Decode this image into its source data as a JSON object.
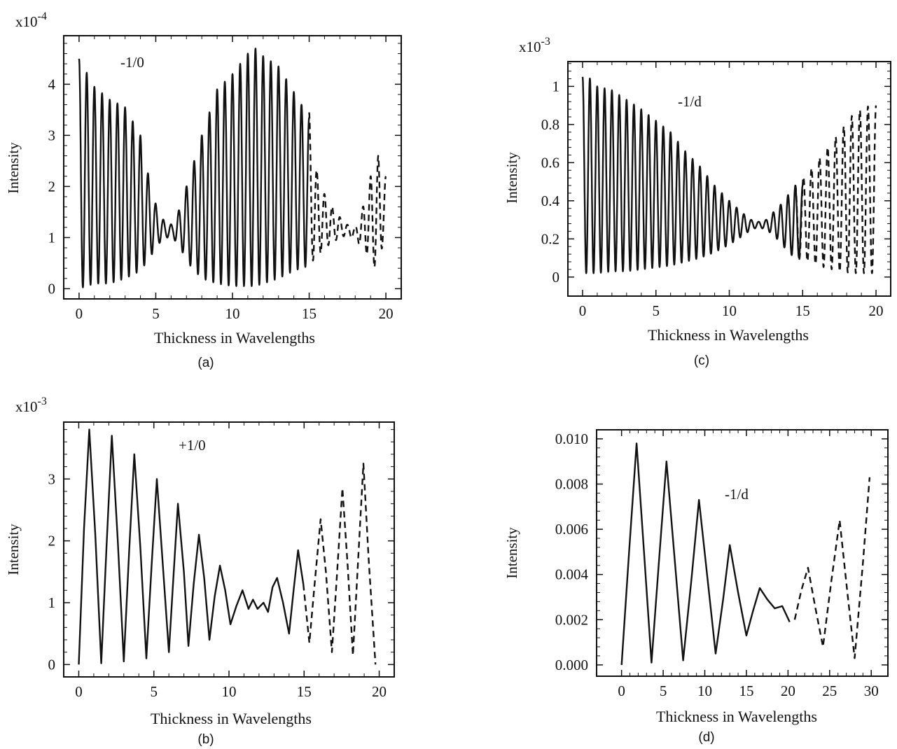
{
  "chart_data": [
    {
      "type": "line",
      "caption": "(a)",
      "annotation": "-1/0",
      "xlabel": "Thickness in  Wavelengths",
      "ylabel": "Intensity",
      "scale_label": "x10",
      "scale_exponent": "-4",
      "xlim": [
        -1,
        21
      ],
      "ylim": [
        -0.2,
        4.95
      ],
      "xticks": [
        0,
        5,
        10,
        15,
        20
      ],
      "yticks": [
        0,
        1,
        2,
        3,
        4
      ],
      "grid": false,
      "series": [
        {
          "style": "solid",
          "x_range": [
            0,
            15
          ],
          "period": 0.5,
          "upper_envelope": [
            [
              0,
              4.5
            ],
            [
              1,
              3.95
            ],
            [
              2,
              3.7
            ],
            [
              3,
              3.55
            ],
            [
              4,
              3.0
            ],
            [
              4.6,
              2.1
            ],
            [
              5.1,
              1.55
            ],
            [
              5.6,
              1.3
            ],
            [
              6.1,
              1.25
            ],
            [
              6.6,
              1.6
            ],
            [
              7.1,
              2.1
            ],
            [
              8,
              3.0
            ],
            [
              9,
              3.9
            ],
            [
              10,
              4.2
            ],
            [
              11,
              4.6
            ],
            [
              11.5,
              4.7
            ],
            [
              12,
              4.55
            ],
            [
              13,
              4.35
            ],
            [
              14,
              3.85
            ],
            [
              15,
              3.35
            ]
          ],
          "lower_envelope": [
            [
              0,
              0.0
            ],
            [
              1,
              0.1
            ],
            [
              2,
              0.1
            ],
            [
              3,
              0.2
            ],
            [
              4,
              0.35
            ],
            [
              4.6,
              0.6
            ],
            [
              5.1,
              0.85
            ],
            [
              5.6,
              1.0
            ],
            [
              6.1,
              1.0
            ],
            [
              6.6,
              0.8
            ],
            [
              7.1,
              0.5
            ],
            [
              8,
              0.2
            ],
            [
              9,
              0.1
            ],
            [
              10,
              0.05
            ],
            [
              11,
              0.05
            ],
            [
              11.5,
              0.05
            ],
            [
              12,
              0.1
            ],
            [
              13,
              0.2
            ],
            [
              14,
              0.35
            ],
            [
              15,
              0.45
            ]
          ]
        },
        {
          "style": "dashed",
          "x_range": [
            15,
            20
          ],
          "period": 0.5,
          "upper_envelope": [
            [
              15,
              3.45
            ],
            [
              15.5,
              2.3
            ],
            [
              16,
              1.85
            ],
            [
              16.5,
              1.6
            ],
            [
              17,
              1.4
            ],
            [
              17.5,
              1.25
            ],
            [
              18,
              1.2
            ],
            [
              18.5,
              1.6
            ],
            [
              19,
              2.2
            ],
            [
              19.5,
              2.6
            ],
            [
              19.8,
              2.2
            ]
          ],
          "lower_envelope": [
            [
              15,
              0.5
            ],
            [
              15.5,
              0.6
            ],
            [
              16,
              0.8
            ],
            [
              16.5,
              0.9
            ],
            [
              17,
              1.0
            ],
            [
              17.5,
              1.05
            ],
            [
              18,
              0.95
            ],
            [
              18.5,
              0.8
            ],
            [
              19,
              0.55
            ],
            [
              19.5,
              0.3
            ],
            [
              19.8,
              0.9
            ]
          ]
        }
      ]
    },
    {
      "type": "line",
      "caption": "(c)",
      "annotation": "-1/d",
      "xlabel": "Thickness in  Wavelengths",
      "ylabel": "Intensity",
      "scale_label": "x10",
      "scale_exponent": "-3",
      "xlim": [
        -1,
        21
      ],
      "ylim": [
        -0.1,
        1.13
      ],
      "xticks": [
        0,
        5,
        10,
        15,
        20
      ],
      "yticks": [
        0.0,
        0.2,
        0.4,
        0.6,
        0.8,
        1.0
      ],
      "grid": false,
      "series": [
        {
          "style": "solid",
          "x_range": [
            0,
            15
          ],
          "period": 0.5,
          "upper_envelope": [
            [
              0.4,
              1.05
            ],
            [
              1,
              1.0
            ],
            [
              2,
              0.98
            ],
            [
              3,
              0.93
            ],
            [
              4,
              0.88
            ],
            [
              5,
              0.82
            ],
            [
              6,
              0.76
            ],
            [
              7,
              0.66
            ],
            [
              8,
              0.58
            ],
            [
              9,
              0.48
            ],
            [
              10,
              0.4
            ],
            [
              11,
              0.33
            ],
            [
              11.5,
              0.3
            ],
            [
              12,
              0.29
            ],
            [
              12.5,
              0.3
            ],
            [
              13,
              0.34
            ],
            [
              13.5,
              0.38
            ],
            [
              14,
              0.43
            ],
            [
              14.5,
              0.48
            ]
          ],
          "lower_envelope": [
            [
              0.4,
              0.02
            ],
            [
              1,
              0.02
            ],
            [
              2,
              0.03
            ],
            [
              3,
              0.03
            ],
            [
              4,
              0.04
            ],
            [
              5,
              0.05
            ],
            [
              6,
              0.06
            ],
            [
              7,
              0.08
            ],
            [
              8,
              0.1
            ],
            [
              9,
              0.13
            ],
            [
              10,
              0.17
            ],
            [
              11,
              0.22
            ],
            [
              11.5,
              0.25
            ],
            [
              12,
              0.26
            ],
            [
              12.5,
              0.25
            ],
            [
              13,
              0.22
            ],
            [
              13.5,
              0.18
            ],
            [
              14,
              0.13
            ],
            [
              14.5,
              0.1
            ]
          ]
        },
        {
          "style": "dashed",
          "x_range": [
            14.5,
            20
          ],
          "period": 0.55,
          "upper_envelope": [
            [
              14.5,
              0.48
            ],
            [
              15.5,
              0.56
            ],
            [
              16.5,
              0.66
            ],
            [
              17.5,
              0.76
            ],
            [
              18.5,
              0.86
            ],
            [
              19.6,
              0.9
            ]
          ],
          "lower_envelope": [
            [
              14.5,
              0.1
            ],
            [
              15.5,
              0.08
            ],
            [
              16.5,
              0.05
            ],
            [
              17.5,
              0.03
            ],
            [
              18.5,
              0.02
            ],
            [
              19.6,
              0.02
            ]
          ]
        }
      ]
    },
    {
      "type": "line",
      "caption": "(b)",
      "annotation": "+1/0",
      "xlabel": "Thickness in  Wavelengths",
      "ylabel": "Intensity",
      "scale_label": "x10",
      "scale_exponent": "-3",
      "xlim": [
        -1,
        21
      ],
      "ylim": [
        -0.2,
        3.92
      ],
      "xticks": [
        0,
        5,
        10,
        15,
        20
      ],
      "yticks": [
        0,
        1,
        2,
        3
      ],
      "grid": false,
      "series": [
        {
          "style": "solid",
          "points": [
            [
              0,
              0
            ],
            [
              0.35,
              2.2
            ],
            [
              0.7,
              3.8
            ],
            [
              1.1,
              2.1
            ],
            [
              1.5,
              0.02
            ],
            [
              1.85,
              1.9
            ],
            [
              2.2,
              3.7
            ],
            [
              2.6,
              2.0
            ],
            [
              3.0,
              0.05
            ],
            [
              3.35,
              1.8
            ],
            [
              3.7,
              3.4
            ],
            [
              4.1,
              1.9
            ],
            [
              4.5,
              0.1
            ],
            [
              4.85,
              1.6
            ],
            [
              5.2,
              3.0
            ],
            [
              5.6,
              1.6
            ],
            [
              6.0,
              0.2
            ],
            [
              6.3,
              1.4
            ],
            [
              6.6,
              2.6
            ],
            [
              7.0,
              1.5
            ],
            [
              7.3,
              0.3
            ],
            [
              7.65,
              1.3
            ],
            [
              8.0,
              2.1
            ],
            [
              8.35,
              1.4
            ],
            [
              8.7,
              0.4
            ],
            [
              9.05,
              1.1
            ],
            [
              9.4,
              1.6
            ],
            [
              9.75,
              1.2
            ],
            [
              10.1,
              0.65
            ],
            [
              10.5,
              0.95
            ],
            [
              10.9,
              1.2
            ],
            [
              11.3,
              0.9
            ],
            [
              11.6,
              1.05
            ],
            [
              11.9,
              0.9
            ],
            [
              12.3,
              1.0
            ],
            [
              12.6,
              0.85
            ],
            [
              12.9,
              1.25
            ],
            [
              13.2,
              1.4
            ],
            [
              13.6,
              1.0
            ],
            [
              14.0,
              0.5
            ],
            [
              14.3,
              1.2
            ],
            [
              14.6,
              1.85
            ],
            [
              14.95,
              1.3
            ]
          ]
        },
        {
          "style": "dashed",
          "points": [
            [
              14.95,
              1.3
            ],
            [
              15.35,
              0.35
            ],
            [
              15.7,
              1.3
            ],
            [
              16.1,
              2.35
            ],
            [
              16.45,
              1.5
            ],
            [
              16.85,
              0.2
            ],
            [
              17.2,
              1.5
            ],
            [
              17.55,
              2.85
            ],
            [
              17.9,
              1.6
            ],
            [
              18.25,
              0.15
            ],
            [
              18.6,
              1.7
            ],
            [
              18.95,
              3.25
            ],
            [
              19.3,
              1.7
            ],
            [
              19.75,
              0.0
            ]
          ]
        }
      ]
    },
    {
      "type": "line",
      "caption": "(d)",
      "annotation": "-1/d",
      "xlabel": "Thickness in  Wavelengths",
      "ylabel": "Intensity",
      "scale_label": "",
      "scale_exponent": "",
      "xlim": [
        -3,
        32
      ],
      "ylim": [
        -0.0005,
        0.0104
      ],
      "xticks": [
        0,
        5,
        10,
        15,
        20,
        25,
        30
      ],
      "yticks": [
        0.0,
        0.002,
        0.004,
        0.006,
        0.008,
        0.01
      ],
      "ytick_labels": [
        "0.000",
        "0.002",
        "0.004",
        "0.006",
        "0.008",
        "0.010"
      ],
      "grid": false,
      "series": [
        {
          "style": "solid",
          "points": [
            [
              0,
              0
            ],
            [
              0.9,
              0.005
            ],
            [
              1.8,
              0.0098
            ],
            [
              2.7,
              0.005
            ],
            [
              3.6,
              0.0001
            ],
            [
              4.5,
              0.0046
            ],
            [
              5.4,
              0.009
            ],
            [
              6.4,
              0.0046
            ],
            [
              7.4,
              0.0002
            ],
            [
              8.4,
              0.0038
            ],
            [
              9.3,
              0.0073
            ],
            [
              10.3,
              0.0039
            ],
            [
              11.3,
              0.0005
            ],
            [
              12.2,
              0.0029
            ],
            [
              13.0,
              0.0053
            ],
            [
              14.0,
              0.0032
            ],
            [
              15.0,
              0.0013
            ],
            [
              15.8,
              0.0024
            ],
            [
              16.6,
              0.0034
            ],
            [
              17.5,
              0.0029
            ],
            [
              18.4,
              0.0025
            ],
            [
              19.3,
              0.0026
            ],
            [
              20.2,
              0.0019
            ]
          ]
        },
        {
          "style": "dashed",
          "points": [
            [
              20.8,
              0.002
            ],
            [
              21.6,
              0.0033
            ],
            [
              22.4,
              0.0043
            ],
            [
              23.3,
              0.0025
            ],
            [
              24.2,
              0.0008
            ],
            [
              25.2,
              0.0037
            ],
            [
              26.2,
              0.0064
            ],
            [
              27.1,
              0.0033
            ],
            [
              28.0,
              0.0003
            ],
            [
              29.0,
              0.0045
            ],
            [
              29.8,
              0.0083
            ]
          ]
        }
      ]
    }
  ]
}
